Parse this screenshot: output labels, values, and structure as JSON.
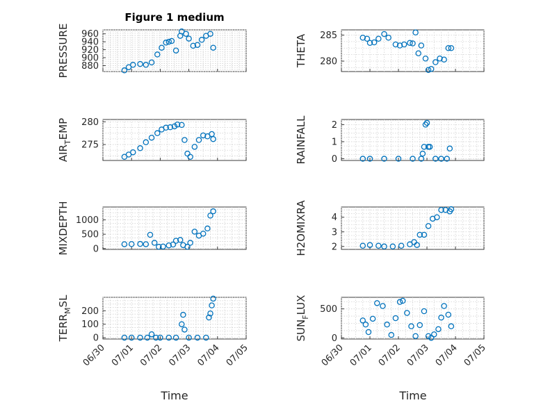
{
  "window": {
    "title": "Figure 1 medium"
  },
  "chart_data": [
    {
      "type": "scatter",
      "panel": "PRESSURE",
      "title": "Figure 1 medium",
      "xlabel": "",
      "ylabel": "PRESSURE",
      "xlim": [
        "06/30",
        "07/05"
      ],
      "ylim": [
        865,
        970
      ],
      "yticks": [
        880,
        900,
        920,
        940,
        960
      ],
      "xtick_labels": [],
      "x": [
        "07/01",
        "07/02",
        "07/03",
        "07/04"
      ],
      "series": [
        {
          "x_days": [
            0.75,
            0.9,
            1.05,
            1.3,
            1.5,
            1.7,
            1.9,
            2.05,
            2.2,
            2.3,
            2.4,
            2.55,
            2.7,
            2.75,
            2.9,
            3.0,
            3.15,
            3.3,
            3.45,
            3.6,
            3.75,
            3.85
          ],
          "values": [
            868,
            876,
            882,
            884,
            882,
            888,
            908,
            925,
            938,
            940,
            942,
            918,
            955,
            966,
            960,
            948,
            930,
            932,
            945,
            955,
            960,
            925
          ]
        }
      ]
    },
    {
      "type": "scatter",
      "panel": "THETA",
      "xlabel": "",
      "ylabel": "THETA",
      "ylim": [
        278,
        286
      ],
      "yticks": [
        280,
        285
      ],
      "series": [
        {
          "x_days": [
            0.75,
            0.9,
            1.0,
            1.15,
            1.3,
            1.5,
            1.65,
            1.9,
            2.05,
            2.2,
            2.4,
            2.5,
            2.6,
            2.7,
            2.8,
            2.95,
            3.05,
            3.15,
            3.3,
            3.45,
            3.6,
            3.75,
            3.85
          ],
          "values": [
            284.5,
            284.3,
            283.5,
            283.6,
            284.3,
            285.2,
            284.5,
            283.2,
            283.0,
            283.2,
            283.5,
            283.4,
            285.5,
            281.5,
            283.0,
            280.5,
            278.3,
            278.5,
            279.8,
            280.5,
            280.3,
            282.5,
            282.5
          ]
        }
      ]
    },
    {
      "type": "scatter",
      "panel": "AIR_TEMP",
      "xlabel": "",
      "ylabel": "AIR_TEMP",
      "ylim": [
        271.5,
        280.5
      ],
      "yticks": [
        275,
        280
      ],
      "series": [
        {
          "x_days": [
            0.75,
            0.9,
            1.05,
            1.3,
            1.5,
            1.7,
            1.9,
            2.05,
            2.2,
            2.35,
            2.5,
            2.6,
            2.75,
            2.85,
            2.95,
            3.05,
            3.2,
            3.35,
            3.5,
            3.65,
            3.8,
            3.85
          ],
          "values": [
            272.3,
            272.8,
            273.3,
            274.2,
            275.5,
            276.5,
            277.5,
            278.3,
            278.7,
            278.8,
            279.0,
            279.4,
            279.3,
            276.0,
            273.0,
            272.3,
            274.5,
            276.0,
            277.0,
            276.8,
            277.3,
            276.2
          ]
        }
      ]
    },
    {
      "type": "scatter",
      "panel": "RAINFALL",
      "xlabel": "",
      "ylabel": "RAINFALL",
      "ylim": [
        -0.1,
        2.3
      ],
      "yticks": [
        0,
        1,
        2
      ],
      "series": [
        {
          "x_days": [
            0.75,
            1.0,
            1.5,
            2.0,
            2.5,
            2.8,
            2.85,
            2.9,
            2.95,
            3.0,
            3.05,
            3.1,
            3.3,
            3.5,
            3.7,
            3.8
          ],
          "values": [
            0,
            0,
            0,
            0,
            0,
            0,
            0.3,
            0.7,
            2.0,
            2.1,
            0.7,
            0.7,
            0,
            0,
            0,
            0.6
          ]
        }
      ]
    },
    {
      "type": "scatter",
      "panel": "MIXDEPTH",
      "xlabel": "",
      "ylabel": "MIXDEPTH",
      "ylim": [
        -30,
        1450
      ],
      "yticks": [
        0,
        500,
        1000
      ],
      "series": [
        {
          "x_days": [
            0.75,
            1.0,
            1.3,
            1.5,
            1.65,
            1.8,
            1.95,
            2.1,
            2.3,
            2.45,
            2.55,
            2.7,
            2.8,
            2.95,
            3.05,
            3.2,
            3.35,
            3.5,
            3.65,
            3.75,
            3.85
          ],
          "values": [
            150,
            155,
            160,
            150,
            480,
            200,
            60,
            70,
            110,
            140,
            270,
            300,
            120,
            60,
            200,
            590,
            450,
            520,
            700,
            1150,
            1300
          ]
        }
      ]
    },
    {
      "type": "scatter",
      "panel": "H2OMIXRA",
      "xlabel": "",
      "ylabel": "H2OMIXRA",
      "ylim": [
        1.8,
        4.7
      ],
      "yticks": [
        2,
        3,
        4
      ],
      "series": [
        {
          "x_days": [
            0.75,
            1.0,
            1.3,
            1.5,
            1.8,
            2.1,
            2.4,
            2.55,
            2.65,
            2.75,
            2.9,
            3.05,
            3.2,
            3.35,
            3.5,
            3.65,
            3.8,
            3.85
          ],
          "values": [
            2.05,
            2.1,
            2.05,
            2.0,
            2.0,
            2.05,
            2.15,
            2.3,
            2.1,
            2.8,
            2.8,
            3.4,
            3.9,
            4.0,
            4.5,
            4.5,
            4.4,
            4.55
          ]
        }
      ]
    },
    {
      "type": "scatter",
      "panel": "TERR_MSL",
      "xlabel": "Time",
      "ylabel": "TERR_MSL",
      "ylim": [
        -10,
        300
      ],
      "yticks": [
        0,
        100,
        200
      ],
      "xtick_labels": [
        "06/30",
        "07/01",
        "07/02",
        "07/03",
        "07/04",
        "07/05"
      ],
      "series": [
        {
          "x_days": [
            0.75,
            1.0,
            1.3,
            1.55,
            1.7,
            1.85,
            2.0,
            2.3,
            2.55,
            2.75,
            2.8,
            2.85,
            3.0,
            3.3,
            3.6,
            3.7,
            3.75,
            3.8,
            3.85
          ],
          "values": [
            0,
            0,
            0,
            0,
            25,
            0,
            0,
            0,
            0,
            100,
            170,
            60,
            0,
            0,
            0,
            150,
            180,
            240,
            290
          ]
        }
      ]
    },
    {
      "type": "scatter",
      "panel": "SUN_FLUX",
      "xlabel": "Time",
      "ylabel": "SUN_FLUX",
      "ylim": [
        -20,
        700
      ],
      "yticks": [
        0,
        500
      ],
      "xtick_labels": [
        "06/30",
        "07/01",
        "07/02",
        "07/03",
        "07/04",
        "07/05"
      ],
      "series": [
        {
          "x_days": [
            0.75,
            0.85,
            0.95,
            1.1,
            1.25,
            1.45,
            1.6,
            1.75,
            1.9,
            2.05,
            2.15,
            2.3,
            2.45,
            2.6,
            2.75,
            2.9,
            3.05,
            3.15,
            3.25,
            3.4,
            3.5,
            3.6,
            3.75,
            3.85
          ],
          "values": [
            300,
            230,
            100,
            330,
            600,
            550,
            230,
            50,
            340,
            620,
            640,
            430,
            200,
            30,
            220,
            460,
            30,
            0,
            60,
            150,
            350,
            550,
            400,
            200
          ]
        }
      ]
    }
  ],
  "axis_labels": {
    "time": "Time"
  },
  "colors": {
    "marker": "#0072BD",
    "axis": "#262626",
    "grid": "#d0d0d0"
  }
}
